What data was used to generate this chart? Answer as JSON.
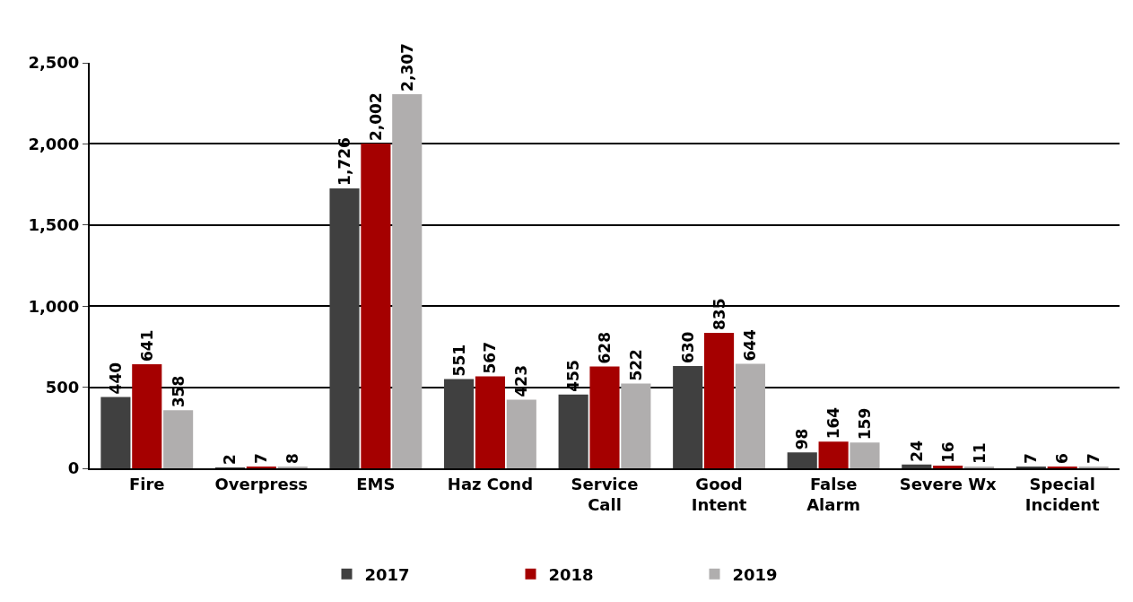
{
  "chart_data": {
    "type": "bar",
    "categories": [
      "Fire",
      "Overpress",
      "EMS",
      "Haz Cond",
      "Service Call",
      "Good Intent",
      "False Alarm",
      "Severe Wx",
      "Special Incident"
    ],
    "series": [
      {
        "name": "2017",
        "color": "#404040",
        "values": [
          440,
          2,
          1726,
          551,
          455,
          630,
          98,
          24,
          7
        ],
        "value_labels": [
          "440",
          "2",
          "1,726",
          "551",
          "455",
          "630",
          "98",
          "24",
          "7"
        ]
      },
      {
        "name": "2018",
        "color": "#a50000",
        "values": [
          641,
          7,
          2002,
          567,
          628,
          835,
          164,
          16,
          6
        ],
        "value_labels": [
          "641",
          "7",
          "2,002",
          "567",
          "628",
          "835",
          "164",
          "16",
          "6"
        ]
      },
      {
        "name": "2019",
        "color": "#b0aeae",
        "values": [
          358,
          8,
          2307,
          423,
          522,
          644,
          159,
          11,
          7
        ],
        "value_labels": [
          "358",
          "8",
          "2,307",
          "423",
          "522",
          "644",
          "159",
          "11",
          "7"
        ]
      }
    ],
    "ylim": [
      0,
      2500
    ],
    "yticks": [
      0,
      {
        "value": 500,
        "label": "500"
      },
      {
        "value": 1000,
        "label": "1,000"
      },
      {
        "value": 1500,
        "label": "1,500"
      },
      {
        "value": 2000,
        "label": "2,000"
      },
      {
        "value": 2500,
        "label": "2,500"
      }
    ],
    "grid": "y",
    "legend": "bottom"
  }
}
